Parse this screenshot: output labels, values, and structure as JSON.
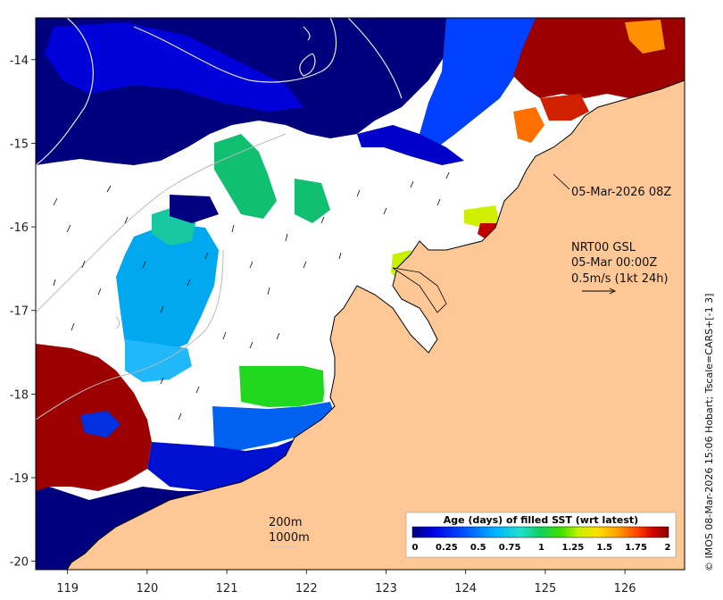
{
  "map": {
    "x_ticks": [
      "119",
      "120",
      "121",
      "122",
      "123",
      "124",
      "125",
      "126"
    ],
    "y_ticks": [
      "-14",
      "-15",
      "-16",
      "-17",
      "-18",
      "-19",
      "-20"
    ],
    "lon_range": [
      118.6,
      126.75
    ],
    "lat_range": [
      -20.1,
      -13.5
    ],
    "land_color": "#fdc896",
    "ocean_no_data_color": "#ffffff"
  },
  "annotations": {
    "timestamp": "05-Mar-2026 08Z",
    "current_product": "NRT00 GSL",
    "current_date": "05-Mar 00:00Z",
    "vector_scale": "0.5m/s (1kt 24h)",
    "isobath_200": "200m",
    "isobath_1000": "1000m"
  },
  "colorbar": {
    "title": "Age (days) of filled SST (wrt latest)",
    "ticks": [
      "0",
      "0.25",
      "0.5",
      "0.75",
      "1",
      "1.25",
      "1.5",
      "1.75",
      "2"
    ],
    "colors": [
      "#00007f",
      "#0000e0",
      "#0050ff",
      "#00b0ff",
      "#20e0d0",
      "#10d060",
      "#40e000",
      "#c8f000",
      "#ffe000",
      "#ffa000",
      "#ff4000",
      "#d00000",
      "#8a0000"
    ]
  },
  "credit": "© IMOS 08-Mar-2026 15:06 Hobart; Tscale=CARS+[-1 3]"
}
